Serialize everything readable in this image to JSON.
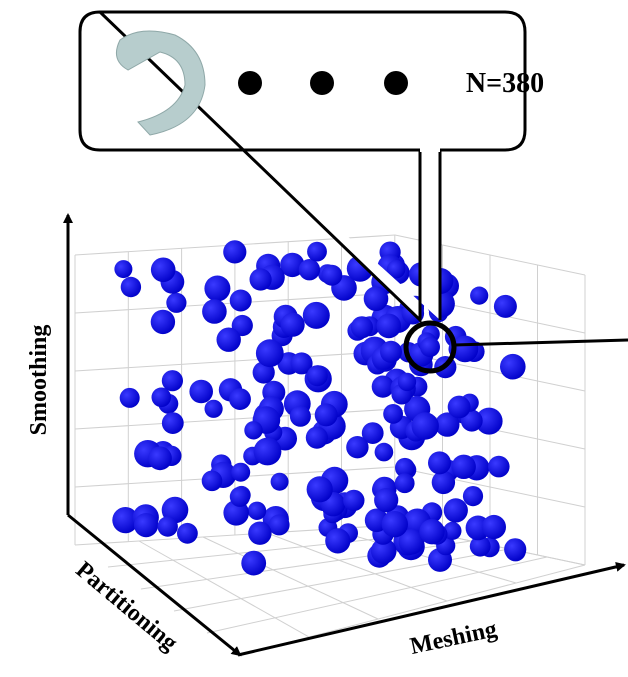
{
  "callout": {
    "label": "N=380"
  },
  "axes": {
    "vertical": "Smoothing",
    "depth": "Partitioning",
    "horizontal": "Meshing"
  }
}
